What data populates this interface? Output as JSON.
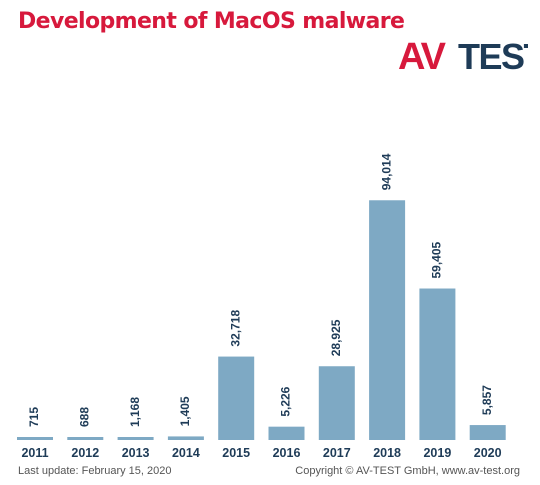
{
  "title": "Development of MacOS malware",
  "logo": {
    "text_left": "AV",
    "text_right": "TEST"
  },
  "footer": {
    "last_update": "Last update: February 15, 2020",
    "copyright": "Copyright © AV-TEST GmbH, www.av-test.org"
  },
  "colors": {
    "bar": "#7ea9c4",
    "title": "#d7193c",
    "logo_red": "#d7193c",
    "logo_blue": "#1e3b57",
    "text": "#1e3b57"
  },
  "chart_data": {
    "type": "bar",
    "title": "Development of MacOS malware",
    "xlabel": "",
    "ylabel": "",
    "categories": [
      "2011",
      "2012",
      "2013",
      "2014",
      "2015",
      "2016",
      "2017",
      "2018",
      "2019",
      "2020"
    ],
    "values": [
      715,
      688,
      1168,
      1405,
      32718,
      5226,
      28925,
      94014,
      59405,
      5857
    ],
    "value_labels": [
      "715",
      "688",
      "1,168",
      "1,405",
      "32,718",
      "5,226",
      "28,925",
      "94,014",
      "59,405",
      "5,857"
    ],
    "ylim": [
      0,
      100000
    ],
    "grid": false,
    "legend": "none"
  }
}
